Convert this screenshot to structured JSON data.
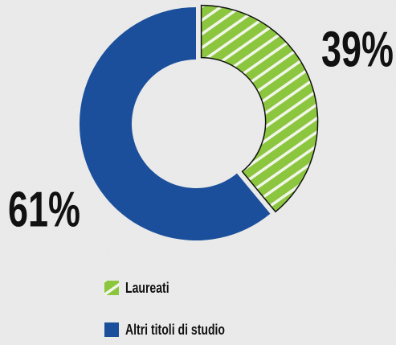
{
  "chart_data": {
    "type": "donut",
    "categories": [
      "Laureati",
      "Altri titoli di studio"
    ],
    "values": [
      39,
      61
    ],
    "value_labels": [
      "39%",
      "61%"
    ],
    "colors": [
      "#8cc63f",
      "#1b4f9c"
    ],
    "patterns": [
      "hatch",
      "solid"
    ]
  }
}
